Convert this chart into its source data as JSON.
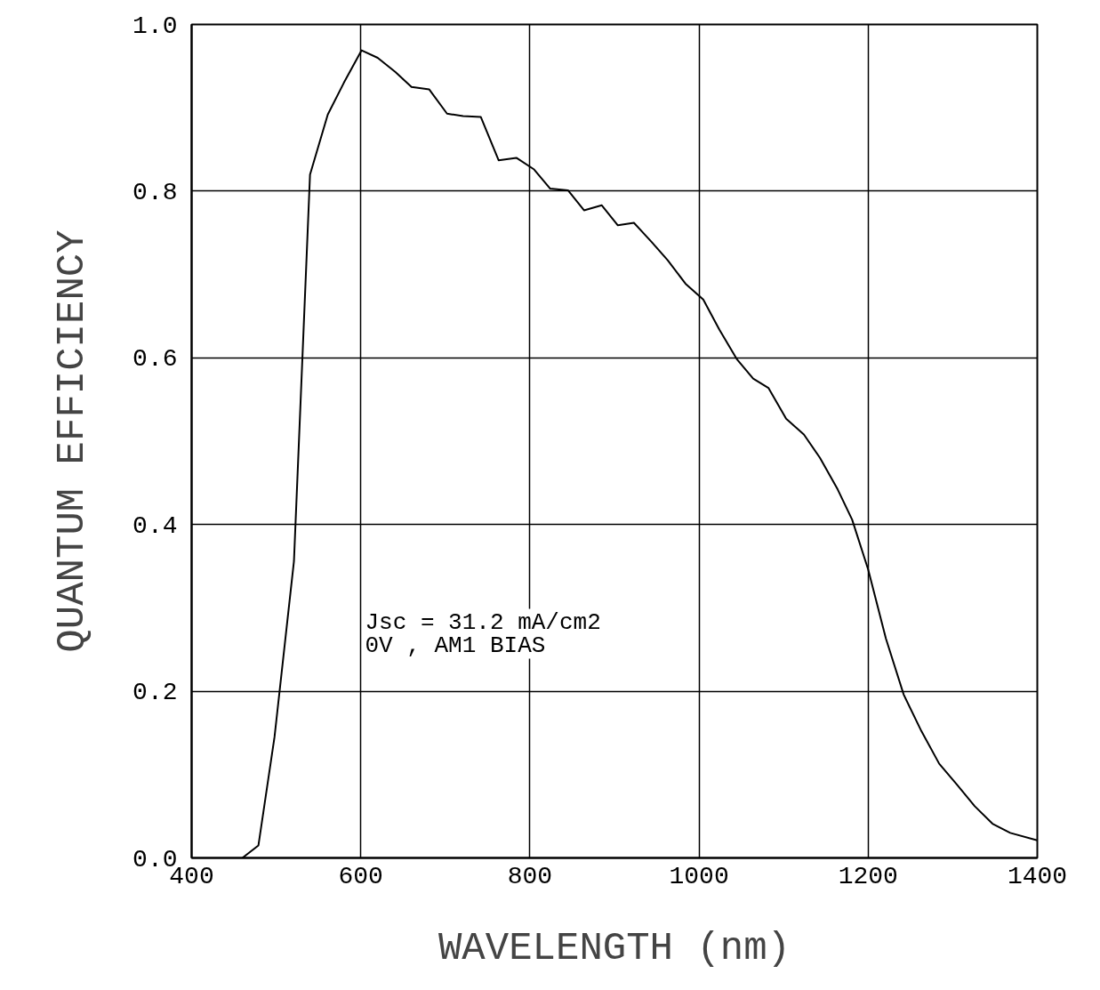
{
  "chart_data": {
    "type": "line",
    "xlabel": "WAVELENGTH (nm)",
    "ylabel": "QUANTUM EFFICIENCY",
    "x": [
      460,
      479,
      498,
      521,
      540,
      561,
      580,
      601,
      620,
      641,
      660,
      681,
      702,
      721,
      742,
      763,
      784,
      805,
      824,
      845,
      864,
      885,
      904,
      923,
      944,
      963,
      984,
      1005,
      1024,
      1045,
      1064,
      1082,
      1103,
      1124,
      1143,
      1164,
      1181,
      1200,
      1221,
      1242,
      1263,
      1284,
      1305,
      1326,
      1347,
      1368,
      1400
    ],
    "series": [
      {
        "color": "#000000",
        "values": [
          0.0,
          0.015,
          0.145,
          0.356,
          0.82,
          0.892,
          0.93,
          0.969,
          0.96,
          0.943,
          0.925,
          0.922,
          0.893,
          0.89,
          0.889,
          0.837,
          0.84,
          0.826,
          0.803,
          0.801,
          0.777,
          0.783,
          0.759,
          0.762,
          0.739,
          0.717,
          0.689,
          0.67,
          0.634,
          0.598,
          0.575,
          0.564,
          0.527,
          0.508,
          0.48,
          0.442,
          0.406,
          0.346,
          0.263,
          0.196,
          0.152,
          0.113,
          0.088,
          0.062,
          0.041,
          0.03,
          0.021
        ]
      }
    ],
    "xlim": [
      400,
      1400
    ],
    "xticks": [
      400,
      600,
      800,
      1000,
      1200,
      1400
    ],
    "ylim": [
      0,
      1
    ],
    "yticks": [
      {
        "value": 0,
        "label": "0.0"
      },
      {
        "value": 0.2,
        "label": "0.2"
      },
      {
        "value": 0.4,
        "label": "0.4"
      },
      {
        "value": 0.6,
        "label": "0.6"
      },
      {
        "value": 0.8,
        "label": "0.8"
      },
      {
        "value": 1,
        "label": "1.0"
      }
    ],
    "grid": true,
    "marker": "none",
    "line_style": "solid",
    "annotations": [
      "Jsc = 31.2 mA/cm2",
      "0V , AM1 BIAS"
    ]
  }
}
